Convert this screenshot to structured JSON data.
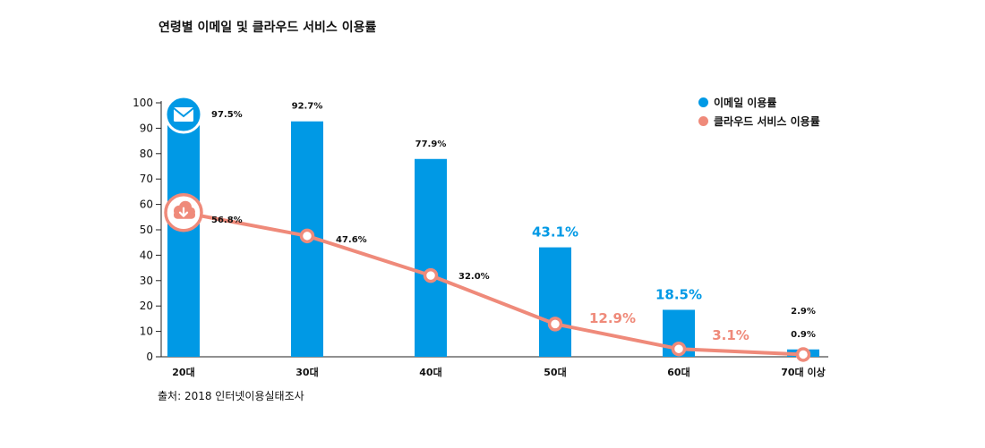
{
  "title": "연령별 이메일 및 클라우드 서비스 이용률",
  "source": "출처: 2018 인터넷이용실태조사",
  "colors": {
    "email": "#0099e5",
    "cloud": "#ef8a7a",
    "axis": "#222222"
  },
  "legend": {
    "email": "이메일 이용률",
    "cloud": "클라우드 서비스 이용률"
  },
  "icons": {
    "email": "envelope-icon",
    "cloud": "cloud-download-icon"
  },
  "chart_data": {
    "type": "bar",
    "categories": [
      "20대",
      "30대",
      "40대",
      "50대",
      "60대",
      "70대 이상"
    ],
    "ylim": [
      0,
      100
    ],
    "yticks": [
      0,
      10,
      20,
      30,
      40,
      50,
      60,
      70,
      80,
      90,
      100
    ],
    "series": [
      {
        "name": "이메일 이용률",
        "type": "bar",
        "values": [
          97.5,
          92.7,
          77.9,
          43.1,
          18.5,
          2.9
        ],
        "labels": [
          "97.5%",
          "92.7%",
          "77.9%",
          "43.1%",
          "18.5%",
          "2.9%"
        ]
      },
      {
        "name": "클라우드 서비스 이용률",
        "type": "line",
        "values": [
          56.8,
          47.6,
          32.0,
          12.9,
          3.1,
          0.9
        ],
        "labels": [
          "56.8%",
          "47.6%",
          "32.0%",
          "12.9%",
          "3.1%",
          "0.9%"
        ]
      }
    ]
  }
}
